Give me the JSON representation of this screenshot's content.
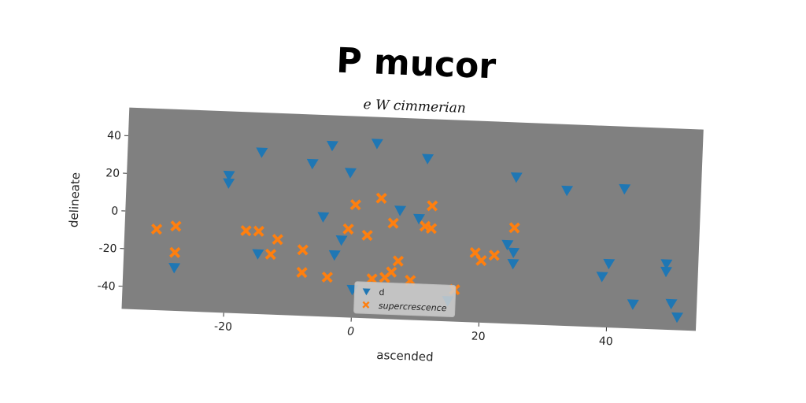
{
  "chart_data": {
    "type": "scatter",
    "title": "P mucor",
    "subtitle": "e W cimmerian",
    "xlabel": "ascended",
    "ylabel": "delineate",
    "xlim": [
      -36,
      54
    ],
    "ylim": [
      -52,
      55
    ],
    "xticks": [
      -20,
      0,
      20,
      40
    ],
    "yticks": [
      -40,
      -20,
      0,
      20,
      40
    ],
    "grid": false,
    "legend_position": "bottom-center",
    "plot_background": "#808080",
    "series": [
      {
        "name": "d",
        "marker": "triangle-down",
        "color": "#1f77b4",
        "points": [
          [
            -4,
            39
          ],
          [
            3,
            41
          ],
          [
            -15,
            34
          ],
          [
            -7,
            29
          ],
          [
            -1,
            25
          ],
          [
            11,
            34
          ],
          [
            -20,
            21
          ],
          [
            -20,
            17
          ],
          [
            -5,
            1
          ],
          [
            -2,
            -11
          ],
          [
            -3,
            -19
          ],
          [
            7,
            6
          ],
          [
            10,
            2
          ],
          [
            -15,
            -20
          ],
          [
            0,
            -37
          ],
          [
            15,
            -41
          ],
          [
            24,
            -10
          ],
          [
            25,
            -14
          ],
          [
            25,
            -20
          ],
          [
            25,
            26
          ],
          [
            33,
            20
          ],
          [
            42,
            22
          ],
          [
            40,
            -18
          ],
          [
            39,
            -25
          ],
          [
            44,
            -39
          ],
          [
            49,
            -17
          ],
          [
            49,
            -21
          ],
          [
            50,
            -38
          ],
          [
            51,
            -45
          ],
          [
            -28,
            -29
          ]
        ]
      },
      {
        "name": "supercrescence",
        "marker": "x",
        "color": "#ff7f0e",
        "points": [
          [
            -31,
            -9
          ],
          [
            -28,
            -7
          ],
          [
            -28,
            -21
          ],
          [
            -17,
            -8
          ],
          [
            -15,
            -8
          ],
          [
            -12,
            -12
          ],
          [
            -13,
            -20
          ],
          [
            -8,
            -17
          ],
          [
            -8,
            -29
          ],
          [
            -4,
            -31
          ],
          [
            0,
            8
          ],
          [
            -1,
            -5
          ],
          [
            2,
            -8
          ],
          [
            4,
            12
          ],
          [
            6,
            -1
          ],
          [
            11,
            -2
          ],
          [
            12,
            -3
          ],
          [
            12,
            9
          ],
          [
            7,
            -21
          ],
          [
            6,
            -27
          ],
          [
            5,
            -30
          ],
          [
            3,
            -31
          ],
          [
            9,
            -31
          ],
          [
            16,
            -35
          ],
          [
            19,
            -15
          ],
          [
            20,
            -19
          ],
          [
            22,
            -16
          ],
          [
            25,
            -1
          ]
        ]
      }
    ]
  }
}
